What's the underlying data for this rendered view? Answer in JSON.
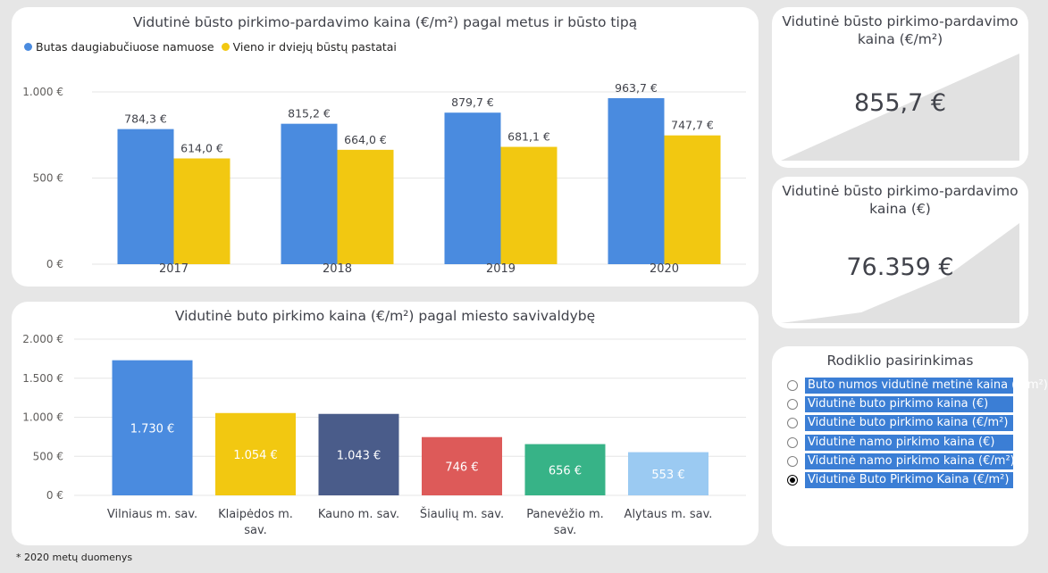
{
  "chart_data": [
    {
      "type": "bar",
      "title": "Vidutinė būsto pirkimo-pardavimo kaina (€/m²) pagal metus ir būsto tipą",
      "categories": [
        "2017",
        "2018",
        "2019",
        "2020"
      ],
      "series": [
        {
          "name": "Butas daugiabučiuose namuose",
          "values": [
            784.3,
            815.2,
            879.7,
            963.7
          ],
          "labels": [
            "784,3 €",
            "815,2 €",
            "879,7 €",
            "963,7 €"
          ],
          "color": "#4a8bdf"
        },
        {
          "name": "Vieno ir dviejų būstų pastatai",
          "values": [
            614.0,
            664.0,
            681.1,
            747.7
          ],
          "labels": [
            "614,0 €",
            "664,0 €",
            "681,1 €",
            "747,7 €"
          ],
          "color": "#f2c811"
        }
      ],
      "ylim": [
        0,
        1000
      ],
      "yticks": [
        0,
        500,
        1000
      ],
      "ytick_labels": [
        "0 €",
        "500 €",
        "1.000 €"
      ],
      "grid": true,
      "legend": "top-left"
    },
    {
      "type": "bar",
      "title": "Vidutinė buto pirkimo kaina (€/m²) pagal miesto savivaldybę",
      "categories": [
        "Vilniaus m. sav.",
        "Klaipėdos m. sav.",
        "Kauno m. sav.",
        "Šiaulių m. sav.",
        "Panevėžio m. sav.",
        "Alytaus m. sav."
      ],
      "category_lines": [
        [
          "Vilniaus m. sav."
        ],
        [
          "Klaipėdos m.",
          "sav."
        ],
        [
          "Kauno m. sav."
        ],
        [
          "Šiaulių m. sav."
        ],
        [
          "Panevėžio m.",
          "sav."
        ],
        [
          "Alytaus m. sav."
        ]
      ],
      "values": [
        1730,
        1054,
        1043,
        746,
        656,
        553
      ],
      "labels": [
        "1.730 €",
        "1.054 €",
        "1.043 €",
        "746 €",
        "656 €",
        "553 €"
      ],
      "colors": [
        "#4a8bdf",
        "#f2c811",
        "#4a5c8a",
        "#dd5a59",
        "#37b387",
        "#9bcaf2"
      ],
      "ylim": [
        0,
        2000
      ],
      "yticks": [
        0,
        500,
        1000,
        1500,
        2000
      ],
      "ytick_labels": [
        "0 €",
        "500 €",
        "1.000 €",
        "1.500 €",
        "2.000 €"
      ],
      "grid": true
    }
  ],
  "kpi1": {
    "title": "Vidutinė būsto pirkimo-pardavimo kaina (€/m²)",
    "value": "855,7 €"
  },
  "kpi2": {
    "title": "Vidutinė būsto pirkimo-pardavimo kaina (€)",
    "value": "76.359 €"
  },
  "slicer": {
    "title": "Rodiklio pasirinkimas",
    "items": [
      {
        "label": "Buto numos vidutinė metinė kaina (€/m²)",
        "selected": false
      },
      {
        "label": "Vidutinė buto pirkimo kaina (€)",
        "selected": false
      },
      {
        "label": "Vidutinė buto pirkimo kaina (€/m²)",
        "selected": false
      },
      {
        "label": "Vidutinė namo pirkimo kaina (€)",
        "selected": false
      },
      {
        "label": "Vidutinė namo pirkimo kaina (€/m²)",
        "selected": false
      },
      {
        "label": "Vidutinė Buto Pirkimo Kaina (€/m²)",
        "selected": true
      }
    ]
  },
  "footnote": "* 2020 metų duomenys"
}
